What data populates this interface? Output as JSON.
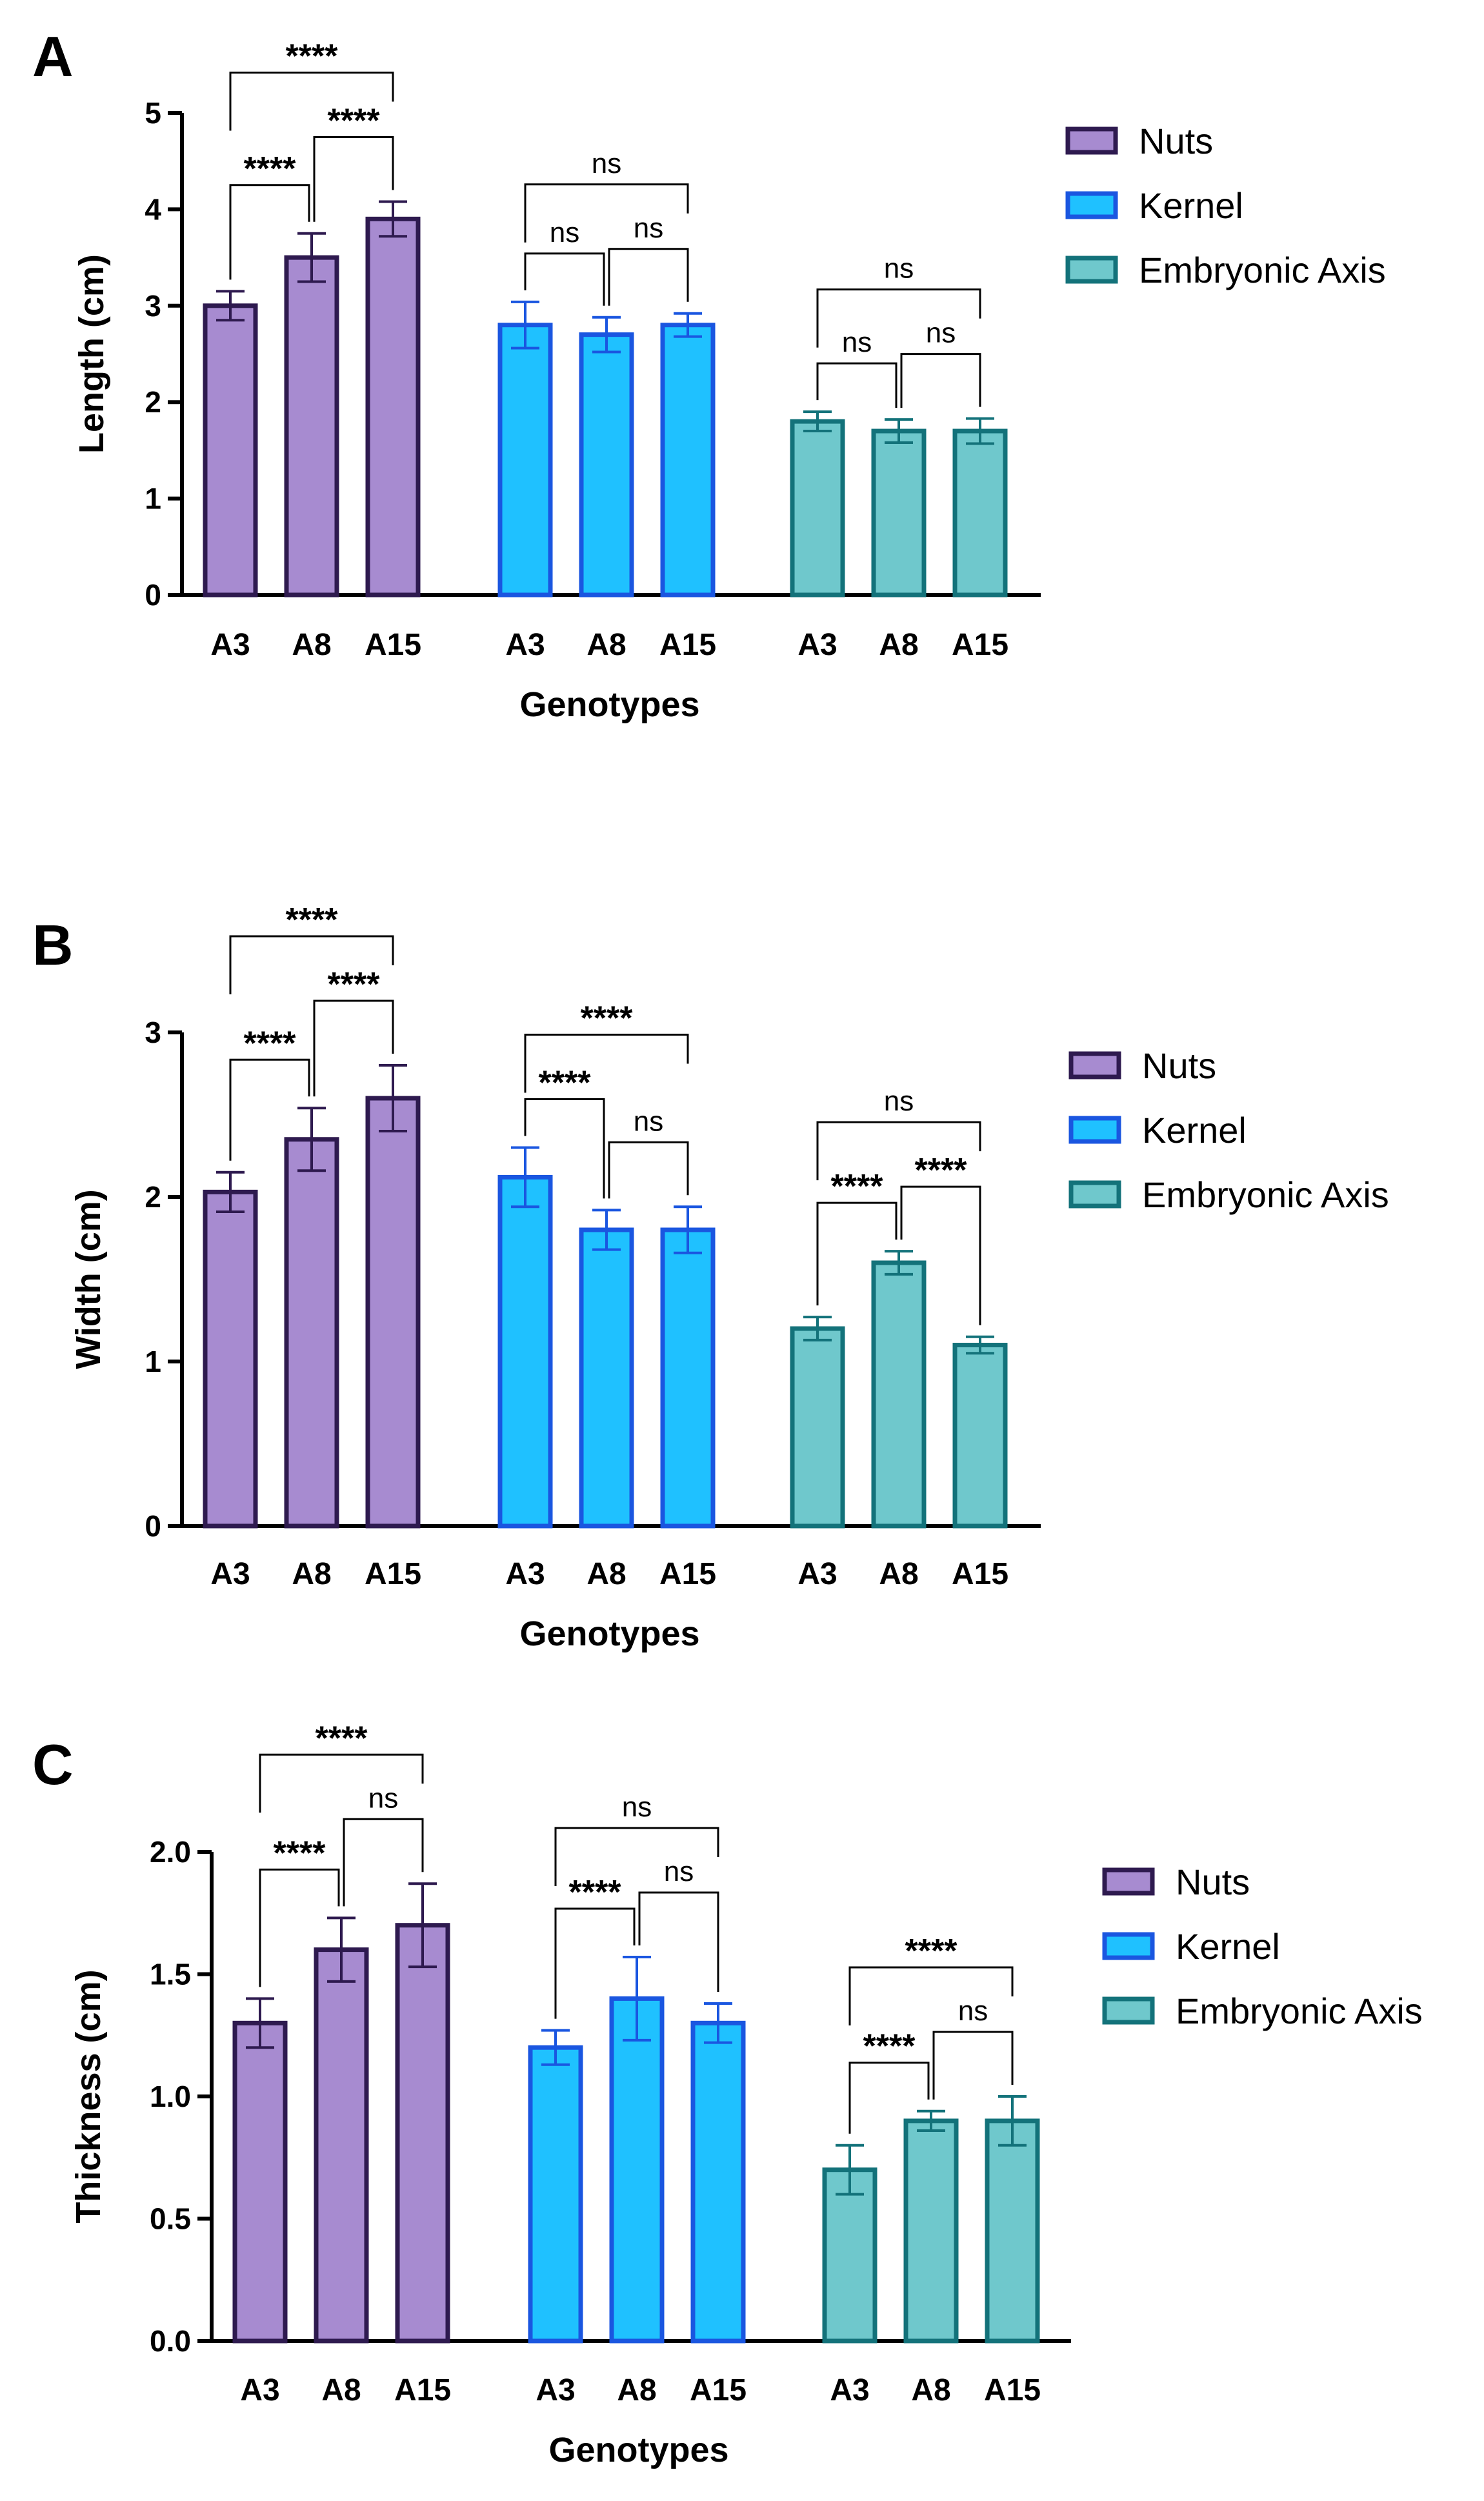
{
  "chart_data": [
    {
      "type": "bar",
      "panel": "A",
      "ylabel": "Length (cm)",
      "xlabel": "Genotypes",
      "ylim": [
        0,
        5
      ],
      "yticks": [
        "0",
        "1",
        "2",
        "3",
        "4",
        "5"
      ],
      "categories": [
        "A3",
        "A8",
        "A15"
      ],
      "series": [
        {
          "name": "Nuts",
          "values": [
            3.0,
            3.5,
            3.9
          ],
          "errors": [
            0.15,
            0.25,
            0.18
          ],
          "fill": "#A78BD0",
          "stroke": "#2E1A4F"
        },
        {
          "name": "Kernel",
          "values": [
            2.8,
            2.7,
            2.8
          ],
          "errors": [
            0.24,
            0.18,
            0.12
          ],
          "fill": "#1FC1FF",
          "stroke": "#1A56E0"
        },
        {
          "name": "Embryonic Axis",
          "values": [
            1.8,
            1.7,
            1.7
          ],
          "errors": [
            0.1,
            0.12,
            0.13
          ],
          "fill": "#6FC8CC",
          "stroke": "#13727A"
        }
      ],
      "comparisons": [
        {
          "series": 0,
          "from": 0,
          "to": 1,
          "label": "****"
        },
        {
          "series": 0,
          "from": 1,
          "to": 2,
          "label": "****"
        },
        {
          "series": 0,
          "from": 0,
          "to": 2,
          "label": "****"
        },
        {
          "series": 1,
          "from": 0,
          "to": 1,
          "label": "ns"
        },
        {
          "series": 1,
          "from": 1,
          "to": 2,
          "label": "ns"
        },
        {
          "series": 1,
          "from": 0,
          "to": 2,
          "label": "ns"
        },
        {
          "series": 2,
          "from": 0,
          "to": 1,
          "label": "ns"
        },
        {
          "series": 2,
          "from": 1,
          "to": 2,
          "label": "ns"
        },
        {
          "series": 2,
          "from": 0,
          "to": 2,
          "label": "ns"
        }
      ],
      "legend": [
        "Nuts",
        "Kernel",
        "Embryonic Axis"
      ]
    },
    {
      "type": "bar",
      "panel": "B",
      "ylabel": "Width (cm)",
      "xlabel": "Genotypes",
      "ylim": [
        0,
        3
      ],
      "yticks": [
        "0",
        "1",
        "2",
        "3"
      ],
      "categories": [
        "A3",
        "A8",
        "A15"
      ],
      "series": [
        {
          "name": "Nuts",
          "values": [
            2.03,
            2.35,
            2.6
          ],
          "errors": [
            0.12,
            0.19,
            0.2
          ],
          "fill": "#A78BD0",
          "stroke": "#2E1A4F"
        },
        {
          "name": "Kernel",
          "values": [
            2.12,
            1.8,
            1.8
          ],
          "errors": [
            0.18,
            0.12,
            0.14
          ],
          "fill": "#1FC1FF",
          "stroke": "#1A56E0"
        },
        {
          "name": "Embryonic Axis",
          "values": [
            1.2,
            1.6,
            1.1
          ],
          "errors": [
            0.07,
            0.07,
            0.05
          ],
          "fill": "#6FC8CC",
          "stroke": "#13727A"
        }
      ],
      "comparisons": [
        {
          "series": 0,
          "from": 0,
          "to": 1,
          "label": "****"
        },
        {
          "series": 0,
          "from": 1,
          "to": 2,
          "label": "****"
        },
        {
          "series": 0,
          "from": 0,
          "to": 2,
          "label": "****"
        },
        {
          "series": 1,
          "from": 0,
          "to": 1,
          "label": "****"
        },
        {
          "series": 1,
          "from": 1,
          "to": 2,
          "label": "ns"
        },
        {
          "series": 1,
          "from": 0,
          "to": 2,
          "label": "****"
        },
        {
          "series": 2,
          "from": 0,
          "to": 1,
          "label": "****"
        },
        {
          "series": 2,
          "from": 1,
          "to": 2,
          "label": "****"
        },
        {
          "series": 2,
          "from": 0,
          "to": 2,
          "label": "ns"
        }
      ],
      "legend": [
        "Nuts",
        "Kernel",
        "Embryonic Axis"
      ]
    },
    {
      "type": "bar",
      "panel": "C",
      "ylabel": "Thickness (cm)",
      "xlabel": "Genotypes",
      "ylim": [
        0,
        2
      ],
      "yticks": [
        "0.0",
        "0.5",
        "1.0",
        "1.5",
        "2.0"
      ],
      "categories": [
        "A3",
        "A8",
        "A15"
      ],
      "series": [
        {
          "name": "Nuts",
          "values": [
            1.3,
            1.6,
            1.7
          ],
          "errors": [
            0.1,
            0.13,
            0.17
          ],
          "fill": "#A78BD0",
          "stroke": "#2E1A4F"
        },
        {
          "name": "Kernel",
          "values": [
            1.2,
            1.4,
            1.3
          ],
          "errors": [
            0.07,
            0.17,
            0.08
          ],
          "fill": "#1FC1FF",
          "stroke": "#1A56E0"
        },
        {
          "name": "Embryonic Axis",
          "values": [
            0.7,
            0.9,
            0.9
          ],
          "errors": [
            0.1,
            0.04,
            0.1
          ],
          "fill": "#6FC8CC",
          "stroke": "#13727A"
        }
      ],
      "comparisons": [
        {
          "series": 0,
          "from": 0,
          "to": 1,
          "label": "****"
        },
        {
          "series": 0,
          "from": 1,
          "to": 2,
          "label": "ns"
        },
        {
          "series": 0,
          "from": 0,
          "to": 2,
          "label": "****"
        },
        {
          "series": 1,
          "from": 0,
          "to": 1,
          "label": "****"
        },
        {
          "series": 1,
          "from": 1,
          "to": 2,
          "label": "ns"
        },
        {
          "series": 1,
          "from": 0,
          "to": 2,
          "label": "ns"
        },
        {
          "series": 2,
          "from": 0,
          "to": 1,
          "label": "****"
        },
        {
          "series": 2,
          "from": 1,
          "to": 2,
          "label": "ns"
        },
        {
          "series": 2,
          "from": 0,
          "to": 2,
          "label": "****"
        }
      ],
      "legend": [
        "Nuts",
        "Kernel",
        "Embryonic Axis"
      ]
    }
  ]
}
